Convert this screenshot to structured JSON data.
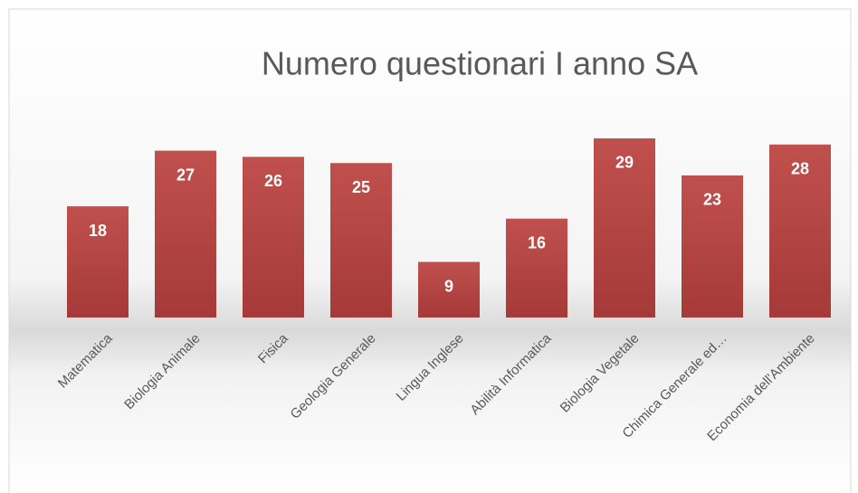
{
  "chart_data": {
    "type": "bar",
    "title": "Numero questionari I anno SA",
    "categories": [
      "Matematica",
      "Biologia Animale",
      "Fisica",
      "Geologia Generale",
      "Lingua Inglese",
      "Abilità Informatica",
      "Biologia Vegetale",
      "Chimica Generale ed…",
      "Economia dell'Ambiente"
    ],
    "values": [
      18,
      27,
      26,
      25,
      9,
      16,
      29,
      23,
      28
    ],
    "color": "#c0504d"
  }
}
